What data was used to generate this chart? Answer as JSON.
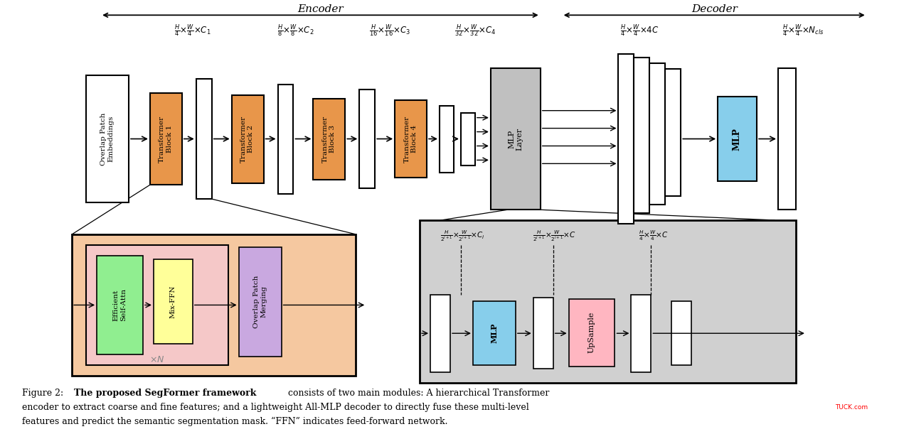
{
  "encoder_label": "Encoder",
  "decoder_label": "Decoder",
  "caption_bold": "The proposed SegFormer framework",
  "caption_rest1": " consists of two main modules: A hierarchical Transformer",
  "caption_line2": "encoder to extract coarse and fine features; and a lightweight All-MLP decoder to directly fuse these multi-level",
  "caption_line3": "features and predict the semantic segmentation mask. “FFN” indicates feed-forward network.",
  "colors": {
    "orange": "#E8964A",
    "white_box": "#FFFFFF",
    "gray_mlp": "#C0C0C0",
    "light_blue": "#87CEEB",
    "green": "#90EE90",
    "yellow": "#FFFF99",
    "purple_overlap": "#C9A8E0",
    "light_pink_bg": "#F5C8C8",
    "light_salmon_bg": "#F5C8A0",
    "light_gray_bg": "#D0D0D0",
    "upsample_pink": "#FFB6C1",
    "black": "#000000"
  }
}
